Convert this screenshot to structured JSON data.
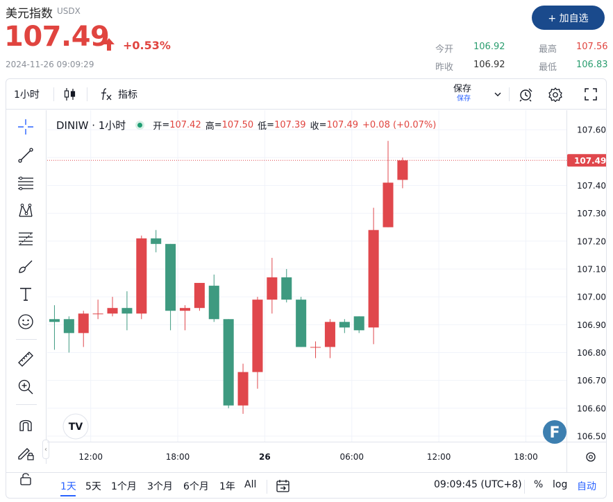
{
  "quote": {
    "name": "美元指数",
    "code": "USDX",
    "price": "107.49",
    "change_pct": "+0.53%",
    "timestamp": "2024-11-26 09:09:29",
    "add_button": "+ 加自选",
    "stats": {
      "open_label": "今开",
      "open_value": "106.92",
      "high_label": "最高",
      "high_value": "107.56",
      "prev_close_label": "昨收",
      "prev_close_value": "106.92",
      "low_label": "最低",
      "low_value": "106.83"
    },
    "colors": {
      "up": "#e0443f",
      "down": "#2a9d6f",
      "button": "#1a4a8c"
    }
  },
  "toolbar": {
    "interval": "1小时",
    "indicators_label": "指标",
    "save_label": "保存",
    "save_sublabel": "保存",
    "icons": [
      "candles-icon",
      "fx-icon",
      "chevron-down-icon",
      "alert-icon",
      "gear-icon",
      "fullscreen-icon"
    ]
  },
  "drawing_tools": [
    "crosshair-icon",
    "trend-line-icon",
    "horizontal-lines-icon",
    "pattern-icon",
    "fib-icon",
    "brush-icon",
    "text-icon",
    "emoji-icon",
    "ruler-icon",
    "zoom-in-icon",
    "magnet-icon",
    "lock-pencil-icon",
    "lock-icon"
  ],
  "legend": {
    "symbol": "DINIW · 1小时",
    "open_label": "开",
    "open_value": "107.42",
    "high_label": "高",
    "high_value": "107.50",
    "low_label": "低",
    "low_value": "107.39",
    "close_label": "收",
    "close_value": "107.49",
    "change": "+0.08 (+0.07%)"
  },
  "chart_data": {
    "type": "candlestick",
    "symbol": "DINIW",
    "interval": "1小时",
    "y_ticks": [
      107.6,
      107.5,
      107.4,
      107.3,
      107.2,
      107.1,
      107.0,
      106.9,
      106.8,
      106.7,
      106.6,
      106.5
    ],
    "ylim": [
      106.48,
      107.67
    ],
    "x_tick_labels": [
      "12:00",
      "18:00",
      "26",
      "06:00",
      "12:00",
      "18:00"
    ],
    "x_tick_slots": [
      3,
      9,
      15,
      21,
      27,
      33
    ],
    "x_tick_bold": [
      false,
      false,
      true,
      false,
      false,
      false
    ],
    "slots_visible": 35.8,
    "last_price": 107.49,
    "last_price_label": "107.49",
    "up_color": "#e0474c",
    "down_color": "#3e9a80",
    "candles": [
      {
        "o": 106.92,
        "h": 106.97,
        "l": 106.81,
        "c": 106.91
      },
      {
        "o": 106.92,
        "h": 106.93,
        "l": 106.8,
        "c": 106.87
      },
      {
        "o": 106.87,
        "h": 106.95,
        "l": 106.82,
        "c": 106.94
      },
      {
        "o": 106.94,
        "h": 106.99,
        "l": 106.92,
        "c": 106.94
      },
      {
        "o": 106.94,
        "h": 107.0,
        "l": 106.93,
        "c": 106.96
      },
      {
        "o": 106.96,
        "h": 107.02,
        "l": 106.88,
        "c": 106.94
      },
      {
        "o": 106.94,
        "h": 107.22,
        "l": 106.92,
        "c": 107.21
      },
      {
        "o": 107.21,
        "h": 107.24,
        "l": 107.16,
        "c": 107.19
      },
      {
        "o": 107.19,
        "h": 107.19,
        "l": 106.88,
        "c": 106.95
      },
      {
        "o": 106.95,
        "h": 106.97,
        "l": 106.88,
        "c": 106.96
      },
      {
        "o": 106.96,
        "h": 107.05,
        "l": 106.95,
        "c": 107.05
      },
      {
        "o": 107.04,
        "h": 107.08,
        "l": 106.91,
        "c": 106.92
      },
      {
        "o": 106.92,
        "h": 106.92,
        "l": 106.6,
        "c": 106.61
      },
      {
        "o": 106.61,
        "h": 106.76,
        "l": 106.58,
        "c": 106.73
      },
      {
        "o": 106.73,
        "h": 107.0,
        "l": 106.67,
        "c": 106.99
      },
      {
        "o": 106.99,
        "h": 107.14,
        "l": 106.94,
        "c": 107.07
      },
      {
        "o": 107.07,
        "h": 107.1,
        "l": 106.98,
        "c": 106.99
      },
      {
        "o": 106.99,
        "h": 107.0,
        "l": 106.82,
        "c": 106.82
      },
      {
        "o": 106.82,
        "h": 106.84,
        "l": 106.78,
        "c": 106.82
      },
      {
        "o": 106.82,
        "h": 106.92,
        "l": 106.78,
        "c": 106.91
      },
      {
        "o": 106.91,
        "h": 106.92,
        "l": 106.87,
        "c": 106.89
      },
      {
        "o": 106.93,
        "h": 106.93,
        "l": 106.87,
        "c": 106.88
      },
      {
        "o": 106.89,
        "h": 107.32,
        "l": 106.83,
        "c": 107.24
      },
      {
        "o": 107.25,
        "h": 107.56,
        "l": 107.25,
        "c": 107.41
      },
      {
        "o": 107.42,
        "h": 107.5,
        "l": 107.39,
        "c": 107.49
      }
    ]
  },
  "bottombar": {
    "ranges": [
      "1天",
      "5天",
      "1个月",
      "3个月",
      "6个月",
      "1年",
      "All"
    ],
    "active_range": "1天",
    "clock": "09:09:45 (UTC+8)",
    "percent_label": "%",
    "log_label": "log",
    "auto_label": "自动"
  },
  "watermarks": {
    "tv_logo": "TV",
    "f_badge": "F"
  }
}
